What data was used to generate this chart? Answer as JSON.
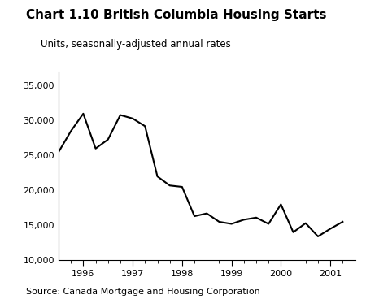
{
  "title": "Chart 1.10 British Columbia Housing Starts",
  "subtitle": "Units, seasonally-adjusted annual rates",
  "source": "Source: Canada Mortgage and Housing Corporation",
  "line_color": "#000000",
  "background_color": "#ffffff",
  "ylim": [
    10000,
    37000
  ],
  "yticks": [
    10000,
    15000,
    20000,
    25000,
    30000,
    35000
  ],
  "xtick_labels": [
    "1996",
    "1997",
    "1998",
    "1999",
    "2000",
    "2001"
  ],
  "x_tick_positions": [
    5,
    9,
    13,
    17,
    21,
    25
  ],
  "xlim": [
    3,
    27
  ],
  "x": [
    3,
    4,
    5,
    6,
    7,
    8,
    9,
    10,
    11,
    12,
    13,
    14,
    15,
    16,
    17,
    18,
    19,
    20,
    21,
    22,
    23,
    24,
    25,
    26
  ],
  "y": [
    25500,
    28500,
    31000,
    26000,
    27300,
    30800,
    30300,
    29200,
    22000,
    20700,
    20500,
    16300,
    16700,
    15500,
    15200,
    15800,
    16100,
    15200,
    18000,
    14000,
    15300,
    13400,
    14500,
    15500
  ],
  "title_fontsize": 11,
  "subtitle_fontsize": 8.5,
  "source_fontsize": 8,
  "tick_fontsize": 8,
  "line_width": 1.5
}
